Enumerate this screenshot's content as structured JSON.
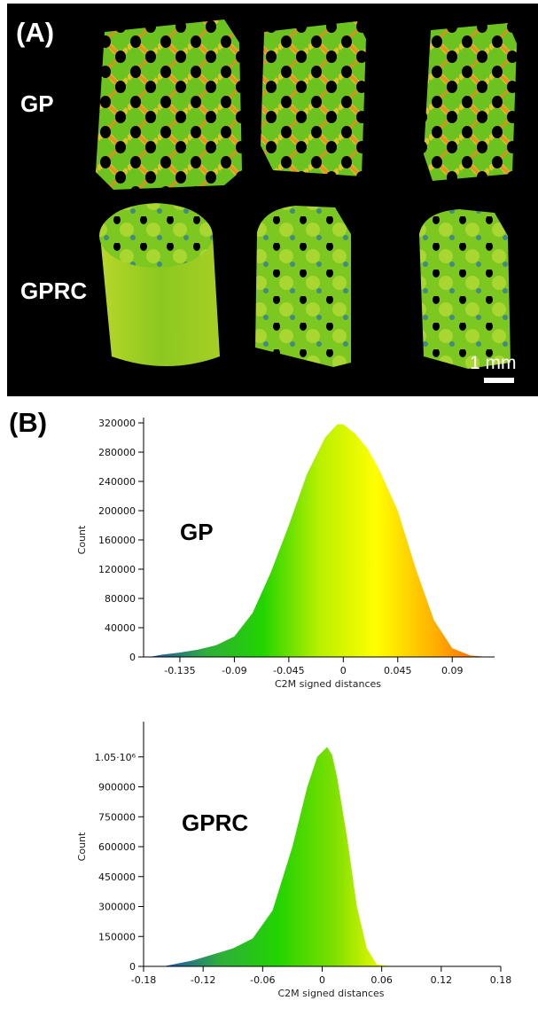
{
  "panel_a": {
    "label": "(A)",
    "row_labels": [
      "GP",
      "GPRC"
    ],
    "scale_bar": "1 mm",
    "colors": {
      "background": "#000000",
      "green": "#5fbf1f",
      "yellow": "#c8d62a",
      "orange": "#e07a18",
      "blue": "#2a6fb0"
    }
  },
  "panel_b": {
    "label": "(B)"
  },
  "chart_data": [
    {
      "type": "area",
      "title": "",
      "inset_label": "GP",
      "xlabel": "C2M signed distances",
      "ylabel": "Count",
      "xlim": [
        -0.165,
        0.125
      ],
      "ylim": [
        0,
        320000
      ],
      "x_ticks": [
        -0.135,
        -0.09,
        -0.045,
        0,
        0.045,
        0.09
      ],
      "x_tick_labels": [
        "-0.135",
        "-0.09",
        "-0.045",
        "0",
        "0.045",
        "0.09"
      ],
      "y_ticks": [
        0,
        40000,
        80000,
        120000,
        160000,
        200000,
        240000,
        280000,
        320000
      ],
      "y_tick_labels": [
        "0",
        "40000",
        "80000",
        "120000",
        "160000",
        "200000",
        "240000",
        "280000",
        "320000"
      ],
      "x": [
        -0.16,
        -0.15,
        -0.135,
        -0.12,
        -0.105,
        -0.09,
        -0.075,
        -0.06,
        -0.045,
        -0.03,
        -0.015,
        -0.005,
        0,
        0.01,
        0.02,
        0.03,
        0.045,
        0.06,
        0.075,
        0.09,
        0.105,
        0.12
      ],
      "values": [
        0,
        3000,
        6000,
        10000,
        16000,
        28000,
        60000,
        115000,
        180000,
        250000,
        300000,
        318000,
        318000,
        305000,
        285000,
        255000,
        200000,
        120000,
        50000,
        12000,
        2000,
        0
      ],
      "colormap": [
        "#1e4fb5",
        "#2fae3a",
        "#22d400",
        "#b8f000",
        "#ffff00",
        "#ffb400",
        "#ff5a00"
      ]
    },
    {
      "type": "area",
      "title": "",
      "inset_label": "GPRC",
      "xlabel": "C2M signed distances",
      "ylabel": "Count",
      "xlim": [
        -0.18,
        0.18
      ],
      "ylim": [
        0,
        1200000
      ],
      "x_ticks": [
        -0.18,
        -0.12,
        -0.06,
        0,
        0.06,
        0.12,
        0.18
      ],
      "x_tick_labels": [
        "-0.18",
        "-0.12",
        "-0.06",
        "0",
        "0.06",
        "0.12",
        "0.18"
      ],
      "y_ticks": [
        0,
        150000,
        300000,
        450000,
        600000,
        750000,
        900000,
        1050000
      ],
      "y_tick_labels": [
        "0",
        "150000",
        "300000",
        "450000",
        "600000",
        "750000",
        "900000",
        "1.05·10⁶"
      ],
      "x": [
        -0.16,
        -0.15,
        -0.13,
        -0.11,
        -0.09,
        -0.07,
        -0.05,
        -0.03,
        -0.015,
        -0.005,
        0.005,
        0.01,
        0.015,
        0.025,
        0.035,
        0.045,
        0.055,
        0.07
      ],
      "values": [
        0,
        10000,
        30000,
        60000,
        90000,
        140000,
        280000,
        600000,
        900000,
        1050000,
        1100000,
        1060000,
        950000,
        650000,
        300000,
        90000,
        10000,
        0
      ],
      "colormap": [
        "#1e4fb5",
        "#2fae3a",
        "#22d400",
        "#7ee000",
        "#ffff00"
      ]
    }
  ]
}
